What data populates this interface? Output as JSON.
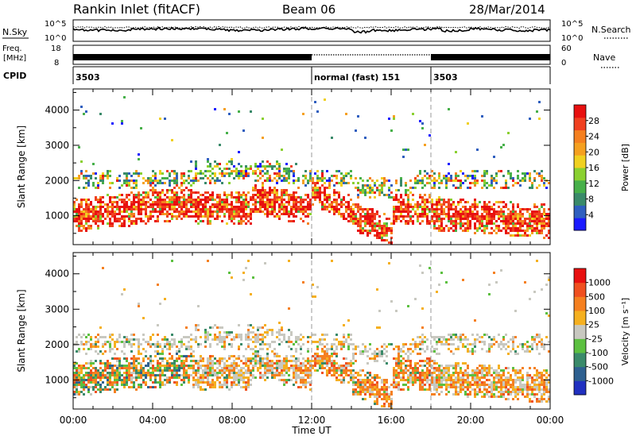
{
  "header": {
    "title": "Rankin Inlet (fitACF)",
    "beam": "Beam 06",
    "date": "28/Mar/2014"
  },
  "strip": {
    "nsky_label": "N.Sky",
    "nsearch_label": "N.Search",
    "noise_ticks_left": [
      "10^5",
      "10^0"
    ],
    "noise_ticks_right": [
      "10^5",
      "10^0"
    ],
    "freq_label": "Freq.",
    "freq_unit": "[MHz]",
    "freq_ticks": [
      "18",
      "8"
    ],
    "nave_label": "Nave",
    "nave_ticks": [
      "60",
      "0"
    ],
    "cpid_label": "CPID",
    "cpid_segments": [
      {
        "start_h": 0,
        "end_h": 12,
        "label": "3503"
      },
      {
        "start_h": 12,
        "end_h": 18,
        "label": "normal (fast) 151"
      },
      {
        "start_h": 18,
        "end_h": 24,
        "label": "3503"
      }
    ]
  },
  "chart_data": [
    {
      "type": "heatmap",
      "name": "power-panel",
      "xlabel": "",
      "ylabel": "Slant Range [km]",
      "xlim": [
        0,
        24
      ],
      "ylim": [
        180,
        4600
      ],
      "yticks": [
        1000,
        2000,
        3000,
        4000
      ],
      "vertical_dashed_lines_h": [
        12,
        18
      ],
      "colorbar": {
        "label": "Power [dB]",
        "ticks": [
          "28",
          "24",
          "20",
          "16",
          "12",
          "8",
          "4"
        ],
        "colors": [
          "#1a1aff",
          "#2f5fbf",
          "#3a8a6a",
          "#47b04a",
          "#8ad030",
          "#f0d020",
          "#f5a020",
          "#f58020",
          "#f04020",
          "#e81010"
        ]
      },
      "bands": [
        {
          "from_h": 0,
          "to_h": 6,
          "range_km": [
            700,
            1700
          ],
          "dominant": "red"
        },
        {
          "from_h": 5,
          "to_h": 12,
          "range_km": [
            1800,
            2600
          ],
          "dominant": "orange-green"
        },
        {
          "from_h": 12,
          "to_h": 18,
          "range_km": [
            400,
            2000
          ],
          "dominant": "orange-red"
        },
        {
          "from_h": 18,
          "to_h": 24,
          "range_km": [
            500,
            1700
          ],
          "dominant": "red"
        }
      ]
    },
    {
      "type": "heatmap",
      "name": "velocity-panel",
      "xlabel": "Time UT",
      "ylabel": "Slant Range [km]",
      "xlim": [
        0,
        24
      ],
      "ylim": [
        180,
        4600
      ],
      "xticks": [
        "00:00",
        "04:00",
        "08:00",
        "12:00",
        "16:00",
        "20:00",
        "00:00"
      ],
      "yticks": [
        1000,
        2000,
        3000,
        4000
      ],
      "vertical_dashed_lines_h": [
        12,
        18
      ],
      "colorbar": {
        "label": "Velocity [m s⁻¹]",
        "ticks": [
          "1000",
          "500",
          "100",
          "25",
          "-25",
          "-100",
          "-500",
          "-1000"
        ],
        "colors": [
          "#2030c0",
          "#2e6090",
          "#3a8a6a",
          "#5cc040",
          "#c8c8c0",
          "#f5b020",
          "#f58020",
          "#f05020",
          "#e81010"
        ]
      },
      "bands": [
        {
          "from_h": 0,
          "to_h": 6,
          "range_km": [
            700,
            1700
          ],
          "dominant": "green-orange"
        },
        {
          "from_h": 6,
          "to_h": 12,
          "range_km": [
            1800,
            2600
          ],
          "dominant": "grey"
        },
        {
          "from_h": 12,
          "to_h": 18,
          "range_km": [
            400,
            2000
          ],
          "dominant": "orange"
        },
        {
          "from_h": 18,
          "to_h": 24,
          "range_km": [
            500,
            1700
          ],
          "dominant": "orange-grey"
        }
      ]
    }
  ]
}
